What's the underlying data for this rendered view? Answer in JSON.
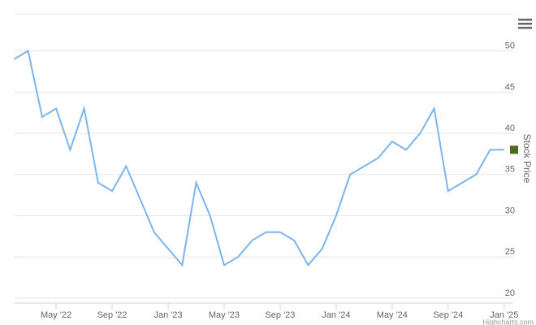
{
  "chart_data": {
    "type": "line",
    "y_axis_title": "Stock Price",
    "credit": "Highcharts.com",
    "x": [
      "2022-02",
      "2022-03",
      "2022-04",
      "2022-05",
      "2022-06",
      "2022-07",
      "2022-08",
      "2022-09",
      "2022-10",
      "2022-11",
      "2022-12",
      "2023-01",
      "2023-02",
      "2023-03",
      "2023-04",
      "2023-05",
      "2023-06",
      "2023-07",
      "2023-08",
      "2023-09",
      "2023-10",
      "2023-11",
      "2023-12",
      "2024-01",
      "2024-02",
      "2024-03",
      "2024-04",
      "2024-05",
      "2024-06",
      "2024-07",
      "2024-08",
      "2024-09",
      "2024-10",
      "2024-11",
      "2024-12",
      "2025-01"
    ],
    "series": [
      {
        "name": "Stock Price",
        "color": "#7cb5ec",
        "values": [
          49,
          50,
          42,
          43,
          38,
          43,
          34,
          33,
          36,
          32,
          28,
          26,
          24,
          34,
          30,
          24,
          25,
          27,
          28,
          28,
          27,
          24,
          26,
          30,
          35,
          36,
          37,
          39,
          38,
          40,
          43,
          33,
          34,
          35,
          38,
          38
        ]
      }
    ],
    "marker_color": "#4b6b1e",
    "xlim": [
      "2022-02",
      "2025-02"
    ],
    "xticks": [
      {
        "value": "2022-05",
        "label": "May '22"
      },
      {
        "value": "2022-09",
        "label": "Sep '22"
      },
      {
        "value": "2023-01",
        "label": "Jan '23"
      },
      {
        "value": "2023-05",
        "label": "May '23"
      },
      {
        "value": "2023-09",
        "label": "Sep '23"
      },
      {
        "value": "2024-01",
        "label": "Jan '24"
      },
      {
        "value": "2024-05",
        "label": "May '24"
      },
      {
        "value": "2024-09",
        "label": "Sep '24"
      },
      {
        "value": "2025-01",
        "label": "Jan '25"
      }
    ],
    "ylim": [
      19.4,
      54.5
    ],
    "yticks": [
      20,
      25,
      30,
      35,
      40,
      45,
      50
    ],
    "grid": true
  }
}
